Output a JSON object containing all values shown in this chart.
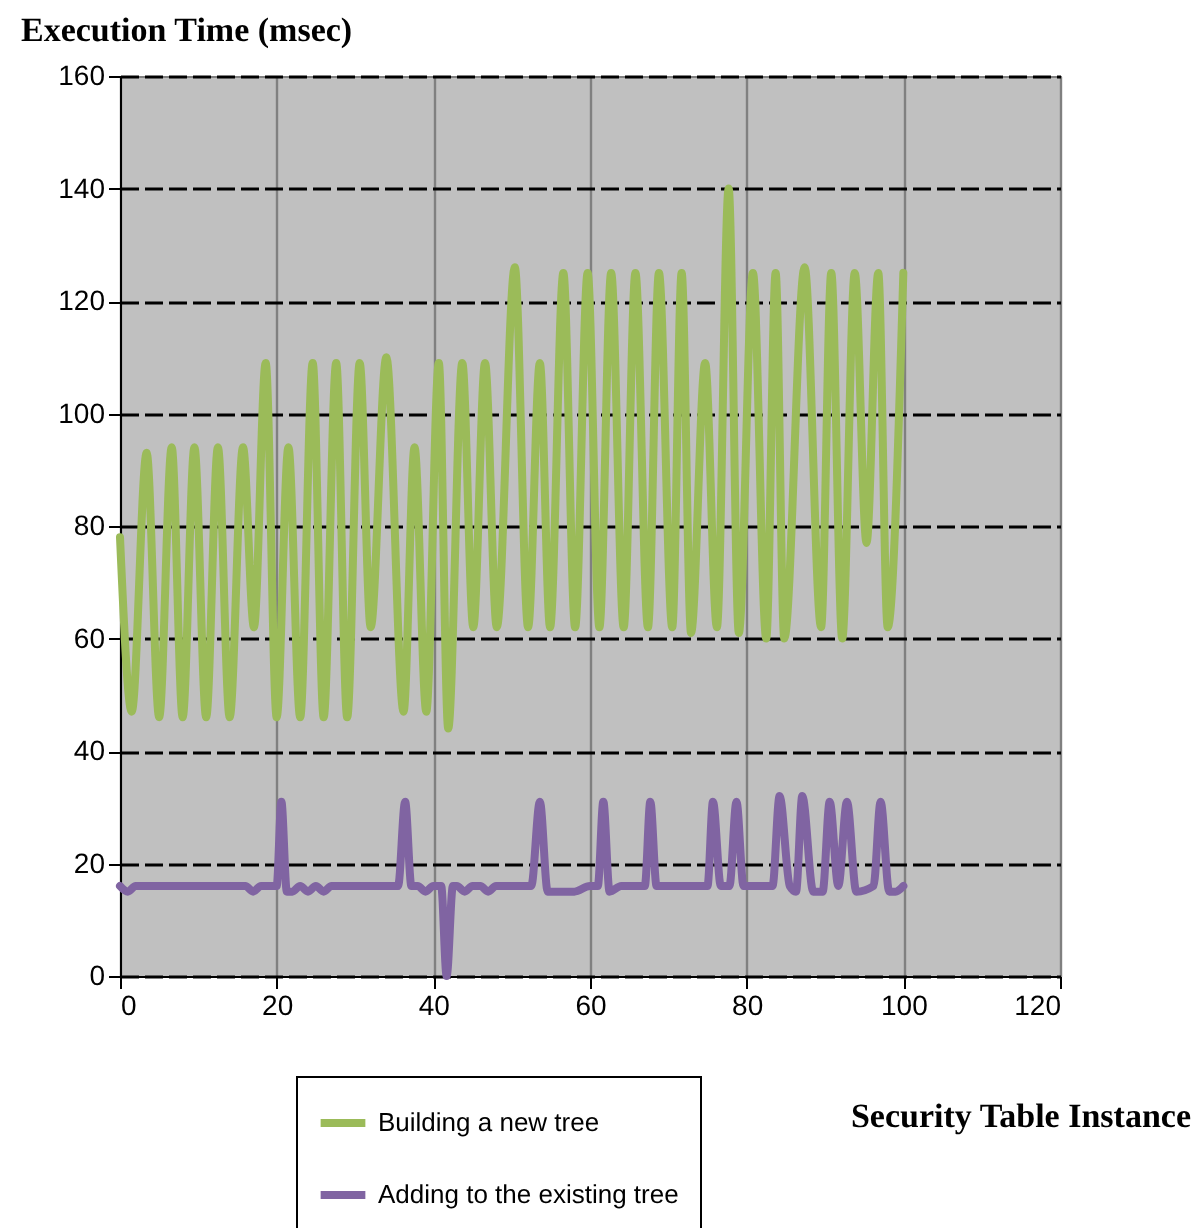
{
  "chart_data": {
    "type": "line",
    "xlabel": "Security Table Instance",
    "ylabel": "Execution Time (msec)",
    "xlim": [
      0,
      120
    ],
    "xticks": [
      0,
      20,
      40,
      60,
      80,
      100,
      120
    ],
    "ylim": [
      0,
      160
    ],
    "yticks": [
      0,
      20,
      40,
      60,
      80,
      100,
      120,
      140,
      160
    ],
    "grid": true,
    "legend": "bottom",
    "marker": "none",
    "line_style": "solid",
    "series": [
      {
        "name": "Building a new tree",
        "color": "#9bbb59",
        "x": [
          0,
          1.5,
          3.4,
          5,
          6.6,
          8,
          9.5,
          11,
          12.5,
          14,
          15.7,
          17.1,
          18.6,
          20,
          21.5,
          23,
          24.6,
          26,
          27.6,
          29,
          30.6,
          32,
          34,
          36.2,
          37.6,
          39.1,
          40.7,
          41.9,
          43.7,
          45.1,
          46.6,
          48.1,
          50.4,
          52.1,
          53.6,
          54.9,
          56.6,
          58.1,
          59.7,
          61.2,
          62.7,
          64.3,
          65.8,
          67.4,
          68.8,
          70.5,
          71.7,
          72.9,
          74.7,
          76.2,
          77.7,
          79,
          80.8,
          82.5,
          83.7,
          84.8,
          87.4,
          89.5,
          90.8,
          92.2,
          93.8,
          95.3,
          96.8,
          98,
          100
        ],
        "values": [
          78,
          47,
          93,
          46,
          94,
          46,
          94,
          46,
          94,
          46,
          94,
          62,
          109,
          46,
          94,
          46,
          109,
          46,
          109,
          46,
          109,
          62,
          110,
          47,
          94,
          47,
          109,
          44,
          109,
          62,
          109,
          62,
          126,
          62,
          109,
          62,
          125,
          62,
          125,
          62,
          125,
          62,
          125,
          62,
          125,
          62,
          125,
          61,
          109,
          62,
          140,
          61,
          125,
          60,
          125,
          60,
          126,
          62,
          125,
          60,
          125,
          77,
          125,
          62,
          125
        ]
      },
      {
        "name": "Adding to the existing tree",
        "color": "#8064a2",
        "x": [
          0,
          1,
          2,
          16,
          17,
          18,
          20,
          20.6,
          21.3,
          22,
          23,
          24,
          25,
          26,
          27,
          28,
          35.5,
          36.4,
          37.2,
          38,
          39,
          40,
          41,
          41.7,
          42.5,
          43,
          44,
          45,
          46,
          47,
          48,
          52.5,
          53.6,
          54.6,
          56,
          58,
          60,
          61,
          61.7,
          62.5,
          64,
          66,
          67,
          67.7,
          68.5,
          70,
          72,
          74,
          75,
          75.7,
          76.7,
          77.8,
          78.7,
          79.6,
          82,
          83.3,
          84.2,
          85.5,
          86.3,
          87.1,
          88.5,
          89.7,
          90.6,
          91.7,
          92.8,
          94,
          96.2,
          97.1,
          98.2,
          99,
          100
        ],
        "values": [
          16,
          15,
          16,
          16,
          15,
          16,
          16,
          31,
          15,
          15,
          16,
          15,
          16,
          15,
          16,
          16,
          16,
          31,
          16,
          16,
          15,
          16,
          16,
          0,
          16,
          16,
          15,
          16,
          16,
          15,
          16,
          16,
          31,
          15,
          15,
          15,
          16,
          16,
          31,
          15,
          16,
          16,
          16,
          31,
          16,
          16,
          16,
          16,
          16,
          31,
          16,
          16,
          31,
          16,
          16,
          16,
          32,
          16,
          15,
          32,
          15,
          15,
          31,
          16,
          31,
          15,
          16,
          31,
          15,
          15,
          16
        ]
      }
    ]
  }
}
